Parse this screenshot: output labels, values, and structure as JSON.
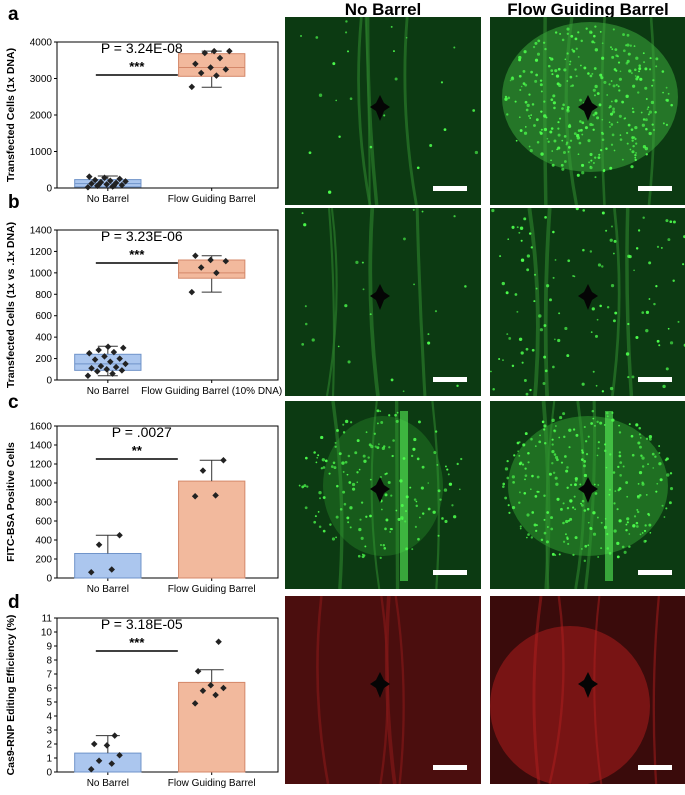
{
  "column_headers": [
    "No Barrel",
    "Flow Guiding Barrel"
  ],
  "panels": [
    {
      "letter": "a",
      "image_tint": "green",
      "image_variant": [
        "sparse",
        "dense-disc"
      ]
    },
    {
      "letter": "b",
      "image_tint": "green",
      "image_variant": [
        "sparse",
        "medium"
      ]
    },
    {
      "letter": "c",
      "image_tint": "green",
      "image_variant": [
        "medium-stripe",
        "bright-stripe"
      ]
    },
    {
      "letter": "d",
      "image_tint": "red",
      "image_variant": [
        "dim-red",
        "bright-red"
      ]
    }
  ],
  "colors": {
    "no_barrel": "#abc6ee",
    "no_barrel_edge": "#6f93c9",
    "flow_barrel": "#f2b99d",
    "flow_barrel_edge": "#d4886a",
    "green_channel": "#1fc21f",
    "red_channel": "#d71616"
  },
  "chart_data": [
    {
      "type": "box",
      "panel": "a",
      "ylabel": "Transfected Cells (1x DNA)",
      "categories": [
        "No Barrel",
        "Flow Guiding Barrel"
      ],
      "ylim": [
        0,
        4000
      ],
      "yticks": [
        0,
        1000,
        2000,
        3000,
        4000
      ],
      "p_value": "P = 3.24E-08",
      "significance": "***",
      "boxes": [
        {
          "q1": 30,
          "median": 120,
          "q3": 230,
          "whisker_low": 20,
          "whisker_high": 330,
          "points": [
            20,
            40,
            60,
            80,
            100,
            120,
            140,
            160,
            180,
            200,
            220,
            250,
            280,
            310,
            60,
            90
          ]
        },
        {
          "q1": 3060,
          "median": 3300,
          "q3": 3680,
          "whisker_low": 2760,
          "whisker_high": 3750,
          "points": [
            2770,
            3080,
            3150,
            3250,
            3300,
            3400,
            3560,
            3700,
            3750,
            3750
          ]
        }
      ]
    },
    {
      "type": "box",
      "panel": "b",
      "ylabel": "Transfected Cells (1x vs .1x DNA)",
      "categories": [
        "No Barrel",
        "Flow Guiding Barrel (10% DNA)"
      ],
      "ylim": [
        0,
        1400
      ],
      "yticks": [
        0,
        200,
        400,
        600,
        800,
        1000,
        1200,
        1400
      ],
      "p_value": "P = 3.23E-06",
      "significance": "***",
      "boxes": [
        {
          "q1": 90,
          "median": 150,
          "q3": 240,
          "whisker_low": 40,
          "whisker_high": 315,
          "points": [
            40,
            60,
            80,
            90,
            100,
            110,
            120,
            130,
            150,
            170,
            190,
            200,
            220,
            250,
            260,
            280,
            300,
            310
          ]
        },
        {
          "q1": 950,
          "median": 1000,
          "q3": 1120,
          "whisker_low": 820,
          "whisker_high": 1160,
          "points": [
            820,
            1000,
            1050,
            1110,
            1120,
            1160
          ]
        }
      ]
    },
    {
      "type": "bar",
      "panel": "c",
      "ylabel": "FITC-BSA Positive Cells",
      "categories": [
        "No Barrel",
        "Flow Guiding Barrel"
      ],
      "ylim": [
        0,
        1600
      ],
      "yticks": [
        0,
        200,
        400,
        600,
        800,
        1000,
        1200,
        1400,
        1600
      ],
      "p_value": "P = .0027",
      "p_italic_prefix": true,
      "significance": "**",
      "bars": [
        {
          "value": 258,
          "err_high": 450,
          "points": [
            60,
            90,
            350,
            450
          ]
        },
        {
          "value": 1020,
          "err_high": 1240,
          "points": [
            860,
            870,
            1130,
            1240
          ]
        }
      ]
    },
    {
      "type": "bar",
      "panel": "d",
      "ylabel": "Cas9-RNP Editing Efficiency (%)",
      "categories": [
        "No Barrel",
        "Flow Guiding Barrel"
      ],
      "ylim": [
        0,
        11
      ],
      "yticks": [
        0,
        1,
        2,
        3,
        4,
        5,
        6,
        7,
        8,
        9,
        10,
        11
      ],
      "p_value": "P = 3.18E-05",
      "significance": "***",
      "bars": [
        {
          "value": 1.35,
          "err_high": 2.6,
          "points": [
            0.2,
            0.6,
            0.8,
            1.2,
            1.9,
            2.0,
            2.6
          ]
        },
        {
          "value": 6.4,
          "err_high": 7.3,
          "points": [
            4.9,
            5.5,
            5.8,
            6.0,
            6.2,
            7.2,
            9.3
          ]
        }
      ]
    }
  ]
}
